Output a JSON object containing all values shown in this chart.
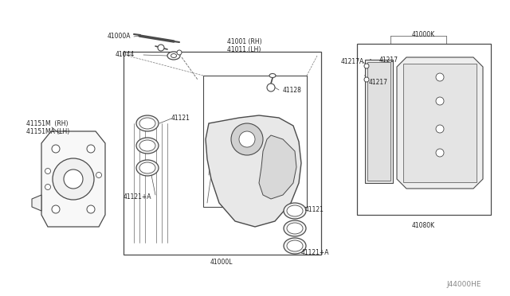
{
  "bg_color": "#ffffff",
  "line_color": "#4a4a4a",
  "fig_width": 6.4,
  "fig_height": 3.72,
  "watermark": "J44000HE",
  "dpi": 100,
  "xlim": [
    0,
    640
  ],
  "ylim": [
    0,
    372
  ]
}
